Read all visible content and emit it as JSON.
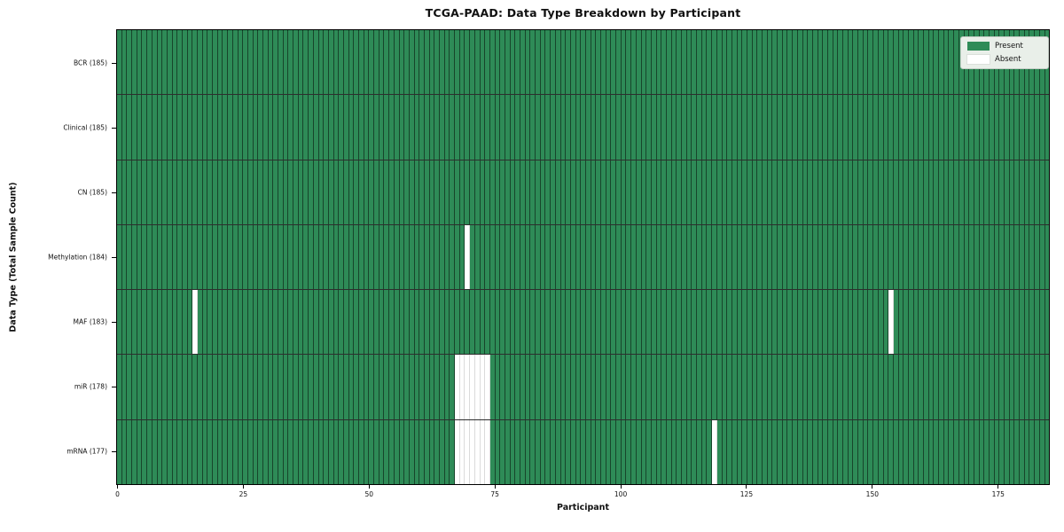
{
  "chart_data": {
    "type": "heatmap",
    "title": "TCGA-PAAD: Data Type Breakdown by Participant",
    "xlabel": "Participant",
    "ylabel": "Data Type (Total Sample Count)",
    "n_participants": 185,
    "x_ticks": [
      0,
      25,
      50,
      75,
      100,
      125,
      150,
      175
    ],
    "grid": "cell-edges",
    "legend": {
      "position": "upper right",
      "entries": [
        {
          "label": "Present",
          "color": "#2e8b57"
        },
        {
          "label": "Absent",
          "color": "#ffffff"
        }
      ]
    },
    "rows": [
      {
        "name": "BCR",
        "label": "BCR (185)",
        "total": 185,
        "absent_participants": []
      },
      {
        "name": "Clinical",
        "label": "Clinical (185)",
        "total": 185,
        "absent_participants": []
      },
      {
        "name": "CN",
        "label": "CN (185)",
        "total": 185,
        "absent_participants": []
      },
      {
        "name": "Methylation",
        "label": "Methylation (184)",
        "total": 184,
        "absent_participants": [
          69
        ]
      },
      {
        "name": "MAF",
        "label": "MAF (183)",
        "total": 183,
        "absent_participants": [
          15,
          153
        ]
      },
      {
        "name": "miR",
        "label": "miR (178)",
        "total": 178,
        "absent_participants": [
          67,
          68,
          69,
          70,
          71,
          72,
          73
        ]
      },
      {
        "name": "mRNA",
        "label": "mRNA (177)",
        "total": 177,
        "absent_participants": [
          67,
          68,
          69,
          70,
          71,
          72,
          73,
          118
        ]
      }
    ],
    "colors": {
      "present": "#2e8b57",
      "absent": "#ffffff",
      "cell_edge": "rgba(0,0,0,0.5)",
      "row_divider": "#1a1a1a",
      "plot_border": "#000000",
      "legend_bg": "#e9efe9"
    }
  }
}
